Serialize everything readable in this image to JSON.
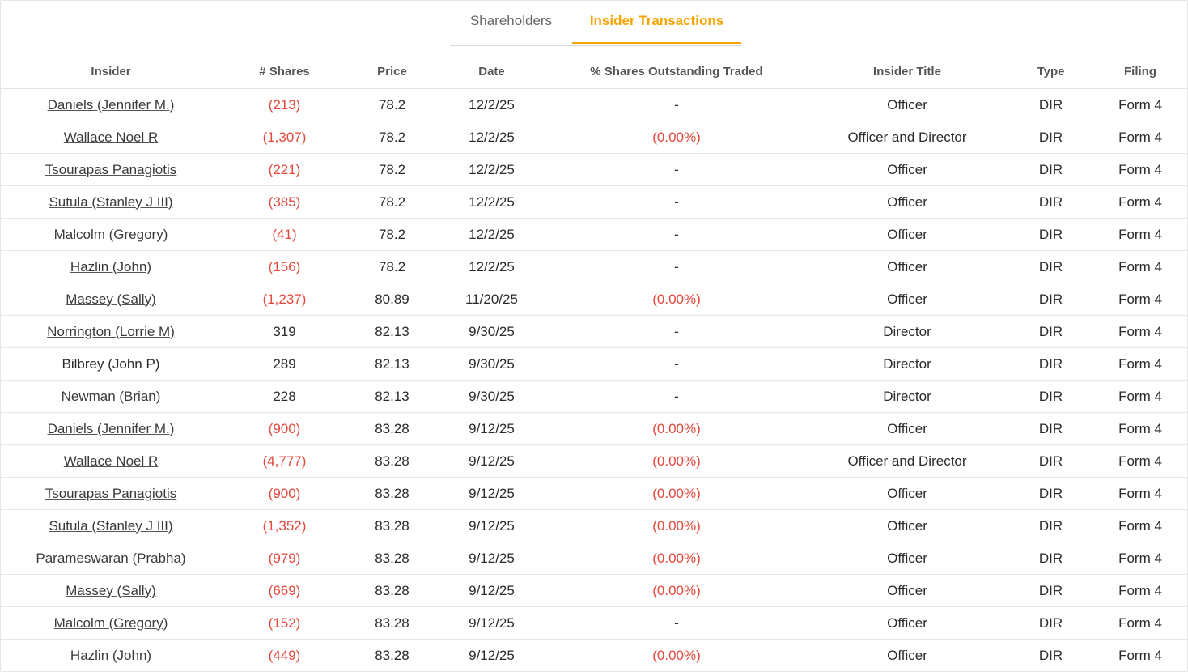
{
  "tabs": {
    "shareholders": "Shareholders",
    "insider_transactions": "Insider Transactions"
  },
  "colors": {
    "accent": "#f5a300",
    "negative": "#e5483c"
  },
  "columns": [
    "Insider",
    "# Shares",
    "Price",
    "Date",
    "% Shares Outstanding Traded",
    "Insider Title",
    "Type",
    "Filing"
  ],
  "rows": [
    {
      "insider": "Daniels (Jennifer M.)",
      "linked": true,
      "shares": "(213)",
      "neg_shares": true,
      "price": "78.2",
      "date": "12/2/25",
      "pct": "-",
      "neg_pct": false,
      "title": "Officer",
      "type": "DIR",
      "filing": "Form 4"
    },
    {
      "insider": "Wallace Noel R",
      "linked": true,
      "shares": "(1,307)",
      "neg_shares": true,
      "price": "78.2",
      "date": "12/2/25",
      "pct": "(0.00%)",
      "neg_pct": true,
      "title": "Officer and Director",
      "type": "DIR",
      "filing": "Form 4"
    },
    {
      "insider": "Tsourapas Panagiotis",
      "linked": true,
      "shares": "(221)",
      "neg_shares": true,
      "price": "78.2",
      "date": "12/2/25",
      "pct": "-",
      "neg_pct": false,
      "title": "Officer",
      "type": "DIR",
      "filing": "Form 4"
    },
    {
      "insider": "Sutula (Stanley J III)",
      "linked": true,
      "shares": "(385)",
      "neg_shares": true,
      "price": "78.2",
      "date": "12/2/25",
      "pct": "-",
      "neg_pct": false,
      "title": "Officer",
      "type": "DIR",
      "filing": "Form 4"
    },
    {
      "insider": "Malcolm (Gregory)",
      "linked": true,
      "shares": "(41)",
      "neg_shares": true,
      "price": "78.2",
      "date": "12/2/25",
      "pct": "-",
      "neg_pct": false,
      "title": "Officer",
      "type": "DIR",
      "filing": "Form 4"
    },
    {
      "insider": "Hazlin (John)",
      "linked": true,
      "shares": "(156)",
      "neg_shares": true,
      "price": "78.2",
      "date": "12/2/25",
      "pct": "-",
      "neg_pct": false,
      "title": "Officer",
      "type": "DIR",
      "filing": "Form 4"
    },
    {
      "insider": "Massey (Sally)",
      "linked": true,
      "shares": "(1,237)",
      "neg_shares": true,
      "price": "80.89",
      "date": "11/20/25",
      "pct": "(0.00%)",
      "neg_pct": true,
      "title": "Officer",
      "type": "DIR",
      "filing": "Form 4"
    },
    {
      "insider": "Norrington (Lorrie M)",
      "linked": true,
      "shares": "319",
      "neg_shares": false,
      "price": "82.13",
      "date": "9/30/25",
      "pct": "-",
      "neg_pct": false,
      "title": "Director",
      "type": "DIR",
      "filing": "Form 4"
    },
    {
      "insider": "Bilbrey (John P)",
      "linked": false,
      "shares": "289",
      "neg_shares": false,
      "price": "82.13",
      "date": "9/30/25",
      "pct": "-",
      "neg_pct": false,
      "title": "Director",
      "type": "DIR",
      "filing": "Form 4"
    },
    {
      "insider": "Newman (Brian)",
      "linked": true,
      "shares": "228",
      "neg_shares": false,
      "price": "82.13",
      "date": "9/30/25",
      "pct": "-",
      "neg_pct": false,
      "title": "Director",
      "type": "DIR",
      "filing": "Form 4"
    },
    {
      "insider": "Daniels (Jennifer M.)",
      "linked": true,
      "shares": "(900)",
      "neg_shares": true,
      "price": "83.28",
      "date": "9/12/25",
      "pct": "(0.00%)",
      "neg_pct": true,
      "title": "Officer",
      "type": "DIR",
      "filing": "Form 4"
    },
    {
      "insider": "Wallace Noel R",
      "linked": true,
      "shares": "(4,777)",
      "neg_shares": true,
      "price": "83.28",
      "date": "9/12/25",
      "pct": "(0.00%)",
      "neg_pct": true,
      "title": "Officer and Director",
      "type": "DIR",
      "filing": "Form 4"
    },
    {
      "insider": "Tsourapas Panagiotis",
      "linked": true,
      "shares": "(900)",
      "neg_shares": true,
      "price": "83.28",
      "date": "9/12/25",
      "pct": "(0.00%)",
      "neg_pct": true,
      "title": "Officer",
      "type": "DIR",
      "filing": "Form 4"
    },
    {
      "insider": "Sutula (Stanley J III)",
      "linked": true,
      "shares": "(1,352)",
      "neg_shares": true,
      "price": "83.28",
      "date": "9/12/25",
      "pct": "(0.00%)",
      "neg_pct": true,
      "title": "Officer",
      "type": "DIR",
      "filing": "Form 4"
    },
    {
      "insider": "Parameswaran (Prabha)",
      "linked": true,
      "shares": "(979)",
      "neg_shares": true,
      "price": "83.28",
      "date": "9/12/25",
      "pct": "(0.00%)",
      "neg_pct": true,
      "title": "Officer",
      "type": "DIR",
      "filing": "Form 4"
    },
    {
      "insider": "Massey (Sally)",
      "linked": true,
      "shares": "(669)",
      "neg_shares": true,
      "price": "83.28",
      "date": "9/12/25",
      "pct": "(0.00%)",
      "neg_pct": true,
      "title": "Officer",
      "type": "DIR",
      "filing": "Form 4"
    },
    {
      "insider": "Malcolm (Gregory)",
      "linked": true,
      "shares": "(152)",
      "neg_shares": true,
      "price": "83.28",
      "date": "9/12/25",
      "pct": "-",
      "neg_pct": false,
      "title": "Officer",
      "type": "DIR",
      "filing": "Form 4"
    },
    {
      "insider": "Hazlin (John)",
      "linked": true,
      "shares": "(449)",
      "neg_shares": true,
      "price": "83.28",
      "date": "9/12/25",
      "pct": "(0.00%)",
      "neg_pct": true,
      "title": "Officer",
      "type": "DIR",
      "filing": "Form 4"
    }
  ]
}
